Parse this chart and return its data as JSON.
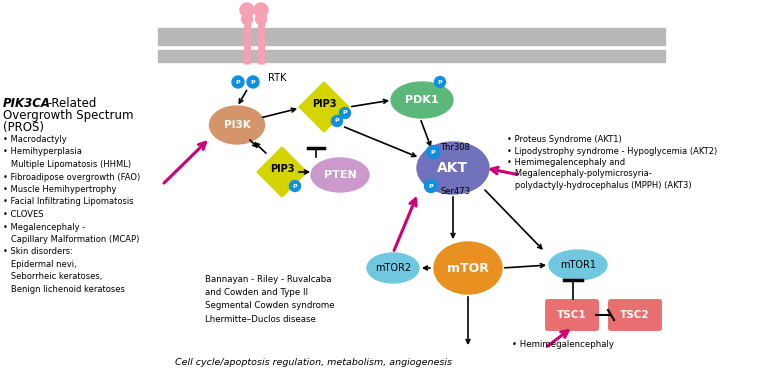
{
  "bg_color": "#ffffff",
  "membrane_color": "#b8b8b8",
  "receptor_color": "#f4a0b5",
  "pi3k_color": "#d4956a",
  "pip3_color": "#d4d400",
  "pdk1_color": "#5cb87a",
  "pten_color": "#cc99cc",
  "akt_color": "#7070bb",
  "mtor_color": "#e89020",
  "mtor1_color": "#70c8e0",
  "mtor2_color": "#70c8e0",
  "tsc1_color": "#e87070",
  "tsc2_color": "#e87070",
  "p_circle_color": "#1090e0",
  "magenta_arrow": "#cc0077",
  "text_color": "#000000",
  "left_bullets": [
    "• Macrodactyly",
    "• Hemihyperplasia",
    "   Multiple Lipomatosis (HHML)",
    "• Fibroadipose overgrowth (FAO)",
    "• Muscle Hemihypertrophy",
    "• Facial Infiltrating Lipomatosis",
    "• CLOVES",
    "• Megalencephaly -",
    "   Capillary Malformation (MCAP)",
    "• Skin disorders:",
    "   Epidermal nevi,",
    "   Seborrheic keratoses,",
    "   Benign lichenoid keratoses"
  ],
  "right_bullets": [
    "• Proteus Syndrome (AKT1)",
    "• Lipodystrophy syndrome - Hypoglycemia (AKT2)",
    "• Hemimegalencephaly and",
    "   Megalencephaly-polymicrosyria-",
    "   polydactyly-hydrocephalus (MPPH) (AKT3)"
  ],
  "bottom_center_text": "Bannayan - Riley - Ruvalcaba\nand Cowden and Type II\nSegmental Cowden syndrome\nLhermitte–Duclos disease",
  "bottom_text": "Cell cycle/apoptosis regulation, metabolism, angiogenesis",
  "hemimeg_text": "• Hemimegalencephaly",
  "rtk_label": "RTK",
  "pi3k_label": "PI3K",
  "pip3_label_top": "PIP3",
  "pip3_label_bot": "PIP3",
  "pdk1_label": "PDK1",
  "pten_label": "PTEN",
  "akt_label": "AKT",
  "mtor_label": "mTOR",
  "mtor1_label": "mTOR1",
  "mtor2_label": "mTOR2",
  "tsc1_label": "TSC1",
  "tsc2_label": "TSC2",
  "thr308_label": "Thr308",
  "ser473_label": "Ser473"
}
